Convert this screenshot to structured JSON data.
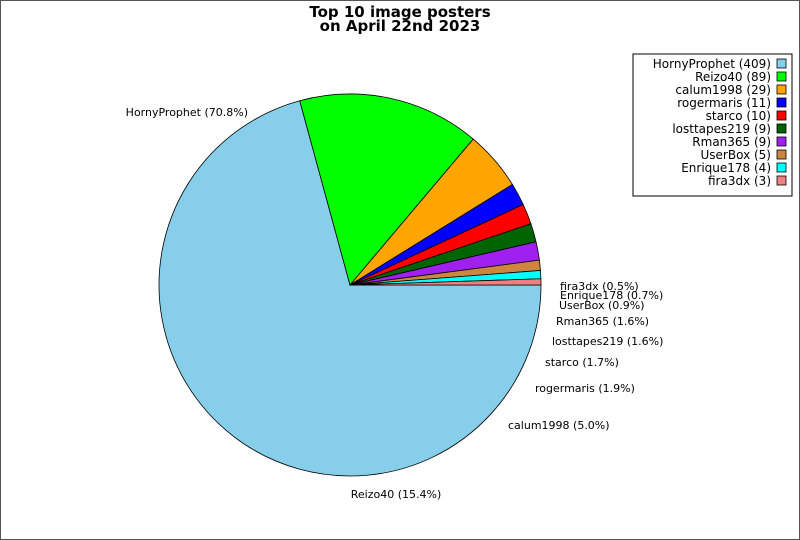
{
  "chart_data": {
    "type": "pie",
    "title_lines": [
      "Top 10 image posters",
      "on April 22nd 2023"
    ],
    "slices": [
      {
        "name": "HornyProphet",
        "value": 409,
        "percent_label": "HornyProphet (70.8%)",
        "legend_label": "HornyProphet (409)",
        "color": "#87ceeb"
      },
      {
        "name": "Reizo40",
        "value": 89,
        "percent_label": "Reizo40 (15.4%)",
        "legend_label": "Reizo40 (89)",
        "color": "#00ff00"
      },
      {
        "name": "calum1998",
        "value": 29,
        "percent_label": "calum1998 (5.0%)",
        "legend_label": "calum1998 (29)",
        "color": "#ffa500"
      },
      {
        "name": "rogermaris",
        "value": 11,
        "percent_label": "rogermaris (1.9%)",
        "legend_label": "rogermaris (11)",
        "color": "#0000ff"
      },
      {
        "name": "starco",
        "value": 10,
        "percent_label": "starco (1.7%)",
        "legend_label": "starco (10)",
        "color": "#ff0000"
      },
      {
        "name": "losttapes219",
        "value": 9,
        "percent_label": "losttapes219 (1.6%)",
        "legend_label": "losttapes219 (9)",
        "color": "#006400"
      },
      {
        "name": "Rman365",
        "value": 9,
        "percent_label": "Rman365 (1.6%)",
        "legend_label": "Rman365 (9)",
        "color": "#a020f0"
      },
      {
        "name": "UserBox",
        "value": 5,
        "percent_label": "UserBox (0.9%)",
        "legend_label": "UserBox (5)",
        "color": "#cd853f"
      },
      {
        "name": "Enrique178",
        "value": 4,
        "percent_label": "Enrique178 (0.7%)",
        "legend_label": "Enrique178 (4)",
        "color": "#00ffff"
      },
      {
        "name": "fira3dx",
        "value": 3,
        "percent_label": "fira3dx (0.5%)",
        "legend_label": "fira3dx (3)",
        "color": "#f08080"
      }
    ],
    "legend_position": "top-right",
    "start_angle": "3 o'clock",
    "direction": "clockwise"
  }
}
